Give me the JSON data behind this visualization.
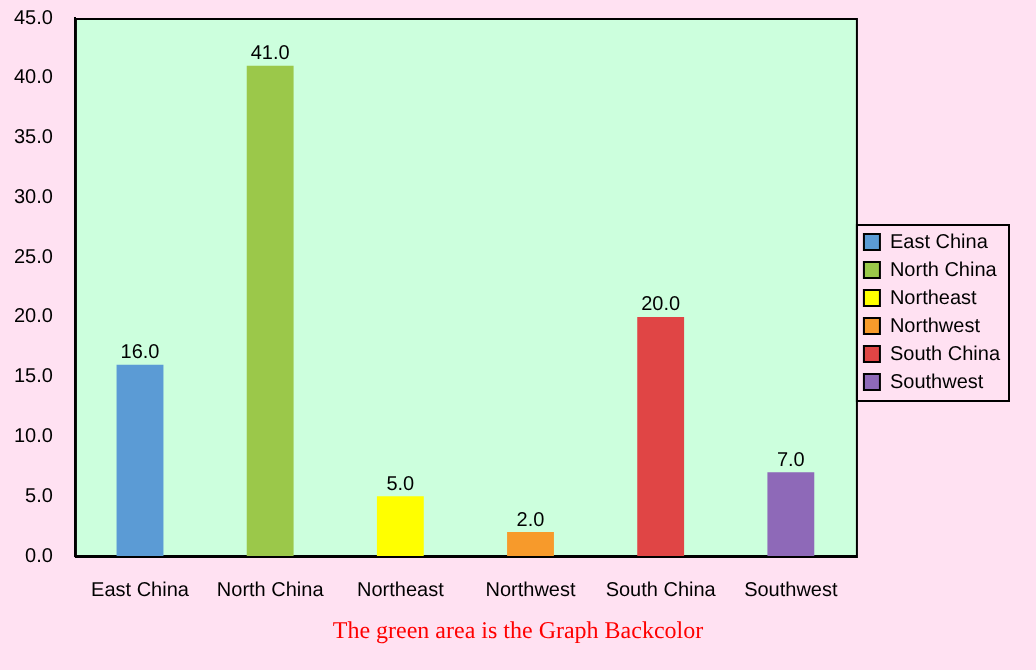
{
  "chart_data": {
    "type": "bar",
    "categories": [
      "East China",
      "North China",
      "Northeast",
      "Northwest",
      "South China",
      "Southwest"
    ],
    "series": [
      {
        "name": "East China",
        "color": "#5b9bd5",
        "values": [
          16,
          null,
          null,
          null,
          null,
          null
        ],
        "value_labels": [
          "16.0",
          null,
          null,
          null,
          null,
          null
        ]
      },
      {
        "name": "North China",
        "color": "#9bc84a",
        "values": [
          null,
          41,
          null,
          null,
          null,
          null
        ],
        "value_labels": [
          null,
          "41.0",
          null,
          null,
          null,
          null
        ]
      },
      {
        "name": "Northeast",
        "color": "#ffff00",
        "values": [
          null,
          null,
          5,
          null,
          null,
          null
        ],
        "value_labels": [
          null,
          null,
          "5.0",
          null,
          null,
          null
        ]
      },
      {
        "name": "Northwest",
        "color": "#f79a2b",
        "values": [
          null,
          null,
          null,
          2,
          null,
          null
        ],
        "value_labels": [
          null,
          null,
          null,
          "2.0",
          null,
          null
        ]
      },
      {
        "name": "South China",
        "color": "#e04545",
        "values": [
          null,
          null,
          null,
          null,
          20,
          null
        ],
        "value_labels": [
          null,
          null,
          null,
          null,
          "20.0",
          null
        ]
      },
      {
        "name": "Southwest",
        "color": "#8e69b8",
        "values": [
          null,
          null,
          null,
          null,
          null,
          7
        ],
        "value_labels": [
          null,
          null,
          null,
          null,
          null,
          "7.0"
        ]
      }
    ],
    "ylim": [
      0,
      45
    ],
    "yticks": [
      {
        "value": 0,
        "label": "0.0"
      },
      {
        "value": 5,
        "label": "5.0"
      },
      {
        "value": 10,
        "label": "10.0"
      },
      {
        "value": 15,
        "label": "15.0"
      },
      {
        "value": 20,
        "label": "20.0"
      },
      {
        "value": 25,
        "label": "25.0"
      },
      {
        "value": 30,
        "label": "30.0"
      },
      {
        "value": 35,
        "label": "35.0"
      },
      {
        "value": 40,
        "label": "40.0"
      },
      {
        "value": 45,
        "label": "45.0"
      }
    ],
    "grid": false,
    "legend": "right",
    "annotations": [
      "The green area is the Graph Backcolor"
    ]
  }
}
